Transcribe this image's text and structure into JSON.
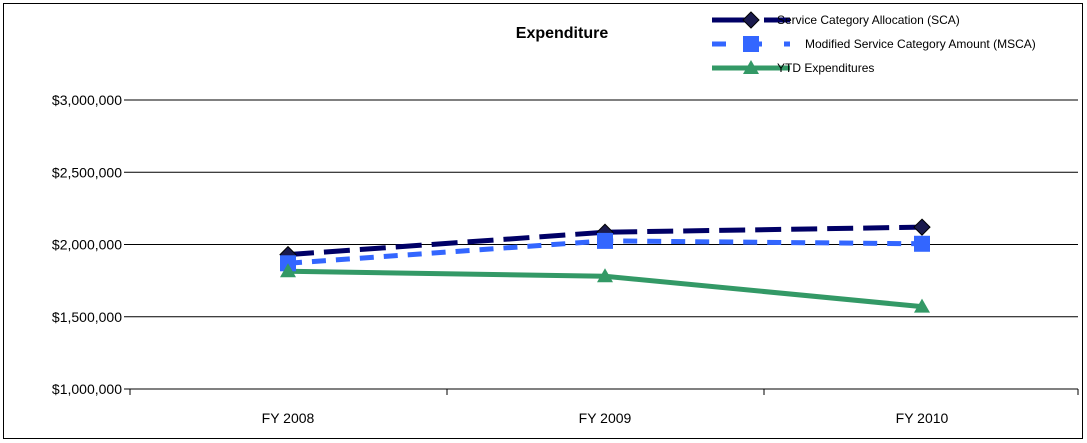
{
  "chart_data": {
    "type": "line",
    "title": "Expenditure",
    "xlabel": "",
    "ylabel": "",
    "categories": [
      "FY 2008",
      "FY 2009",
      "FY 2010"
    ],
    "ylim": [
      1000000,
      3000000
    ],
    "yticks": [
      {
        "value": 3000000,
        "label": "$3,000,000"
      },
      {
        "value": 2500000,
        "label": "$2,500,000"
      },
      {
        "value": 2000000,
        "label": "$2,000,000"
      },
      {
        "value": 1500000,
        "label": "$1,500,000"
      },
      {
        "value": 1000000,
        "label": "$1,000,000"
      }
    ],
    "grid": true,
    "legend_position": "top-right",
    "series": [
      {
        "name": "Service Category Allocation (SCA)",
        "values": [
          1930000,
          2085000,
          2120000
        ],
        "color": "#000066",
        "dash": "long-dash",
        "marker": "diamond",
        "marker_color": "#1a1a4d"
      },
      {
        "name": "Modified Service Category Amount (MSCA)",
        "values": [
          1870000,
          2025000,
          2005000
        ],
        "color": "#3366ff",
        "dash": "dash",
        "marker": "square",
        "marker_color": "#3366ff"
      },
      {
        "name": "YTD Expenditures",
        "values": [
          1815000,
          1780000,
          1570000
        ],
        "color": "#339966",
        "dash": "solid",
        "marker": "triangle",
        "marker_color": "#339966"
      }
    ]
  }
}
